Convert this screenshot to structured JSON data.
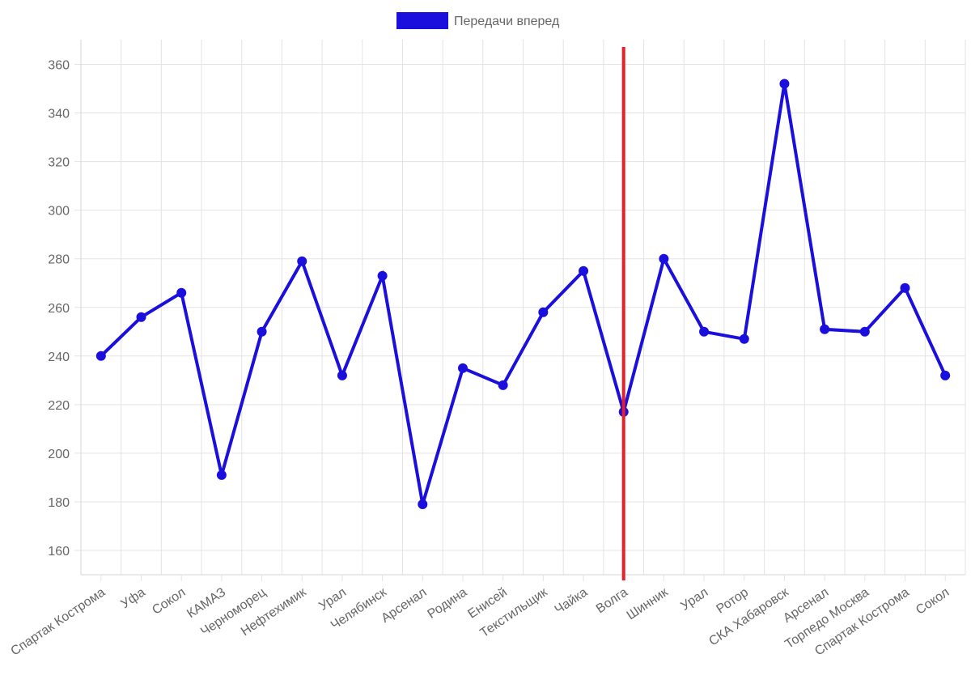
{
  "chart_data": {
    "type": "line",
    "categories": [
      "Спартак Кострома",
      "Уфа",
      "Сокол",
      "КАМАЗ",
      "Черноморец",
      "Нефтехимик",
      "Урал",
      "Челябинск",
      "Арсенал",
      "Родина",
      "Енисей",
      "Текстильщик",
      "Чайка",
      "Волга",
      "Шинник",
      "Урал",
      "Ротор",
      "СКА Хабаровск",
      "Арсенал",
      "Торпедо Москва",
      "Спартак Кострома",
      "Сокол"
    ],
    "series": [
      {
        "name": "Передачи вперед",
        "color": "#1a0fdd",
        "values": [
          240,
          256,
          266,
          191,
          250,
          279,
          232,
          273,
          179,
          235,
          228,
          258,
          275,
          217,
          280,
          250,
          247,
          352,
          251,
          250,
          268,
          232
        ]
      }
    ],
    "ylim": [
      150,
      370
    ],
    "yticks": [
      160,
      180,
      200,
      220,
      240,
      260,
      280,
      300,
      320,
      340,
      360
    ],
    "reference_line": {
      "category_index": 13,
      "color": "#e8202a"
    },
    "legend": {
      "position": "top-center"
    },
    "grid": true,
    "xlabel": "",
    "ylabel": ""
  }
}
